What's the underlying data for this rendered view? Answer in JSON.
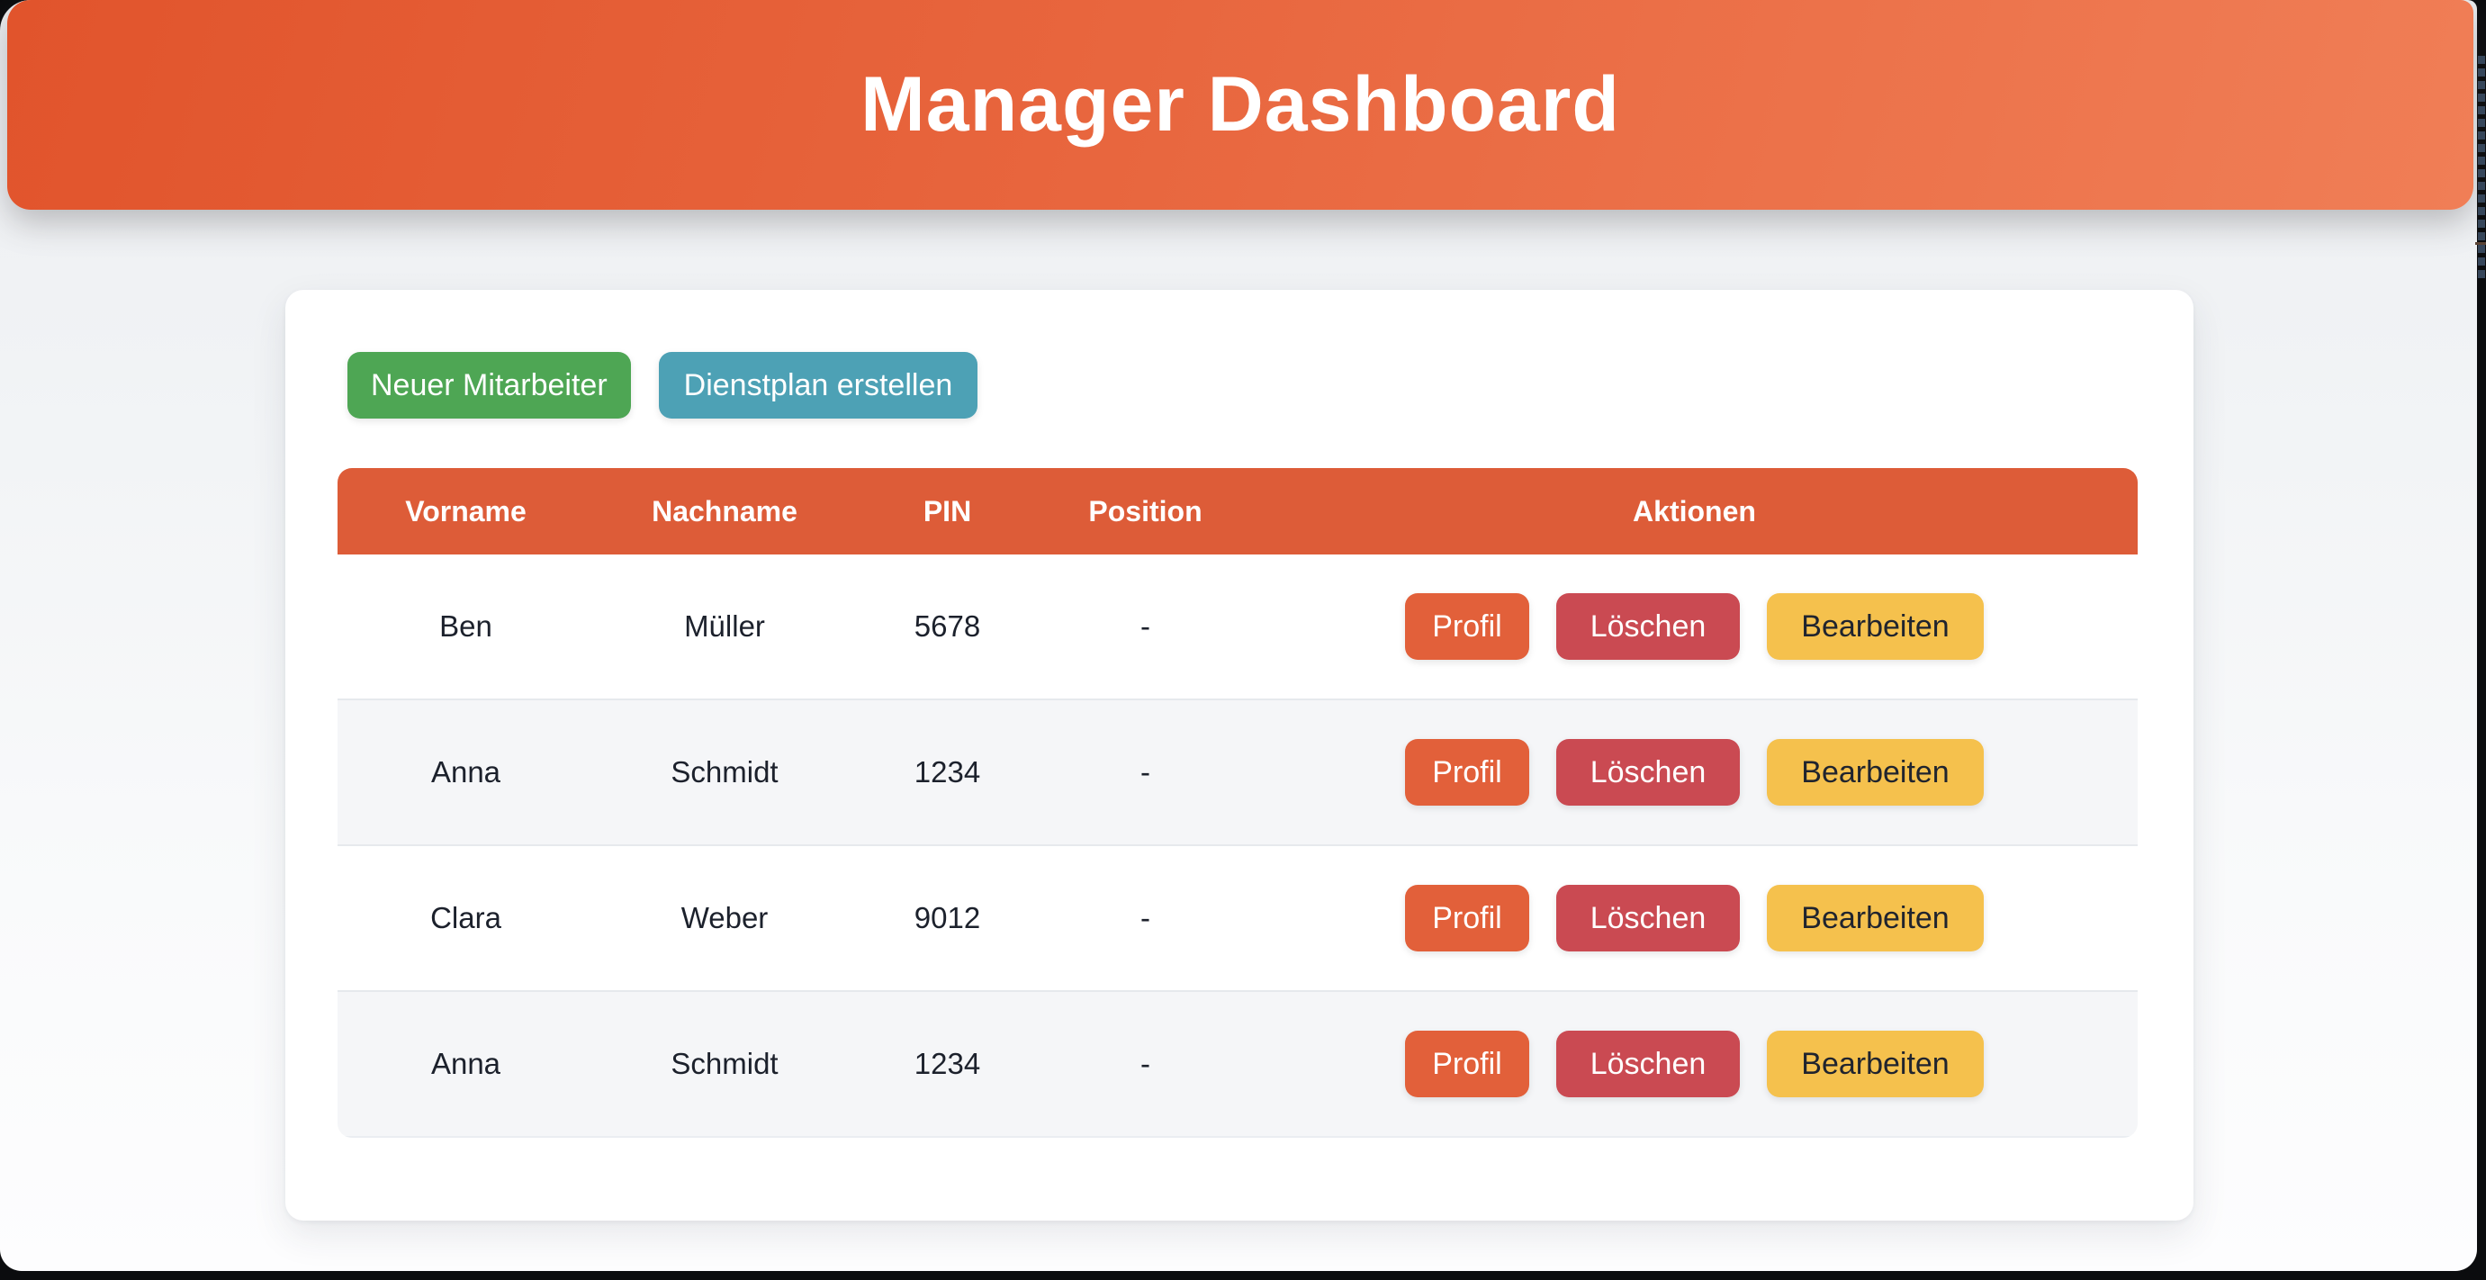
{
  "app": {
    "title": "Manager Dashboard"
  },
  "toolbar": {
    "new_employee_label": "Neuer Mitarbeiter",
    "create_schedule_label": "Dienstplan erstellen"
  },
  "table": {
    "headers": [
      "Vorname",
      "Nachname",
      "PIN",
      "Position",
      "Aktionen"
    ],
    "rows": [
      {
        "vorname": "Ben",
        "nachname": "Müller",
        "pin": "5678",
        "position": "-"
      },
      {
        "vorname": "Anna",
        "nachname": "Schmidt",
        "pin": "1234",
        "position": "-"
      },
      {
        "vorname": "Clara",
        "nachname": "Weber",
        "pin": "9012",
        "position": "-"
      },
      {
        "vorname": "Anna",
        "nachname": "Schmidt",
        "pin": "1234",
        "position": "-"
      }
    ],
    "actions": {
      "profil": "Profil",
      "loeschen": "Löschen",
      "bearbeiten": "Bearbeiten"
    }
  },
  "colors": {
    "header_gradient_start": "#e1542c",
    "header_gradient_end": "#f07e56",
    "table_header": "#dd5c38",
    "button_new": "#4ea654",
    "button_schedule": "#4da1b5",
    "button_profil": "#e2603a",
    "button_loeschen": "#ca4a52",
    "button_bearbeiten": "#f5c14d",
    "row_stripe": "#f5f6f8",
    "desktop_background": "#0b0c0e"
  }
}
